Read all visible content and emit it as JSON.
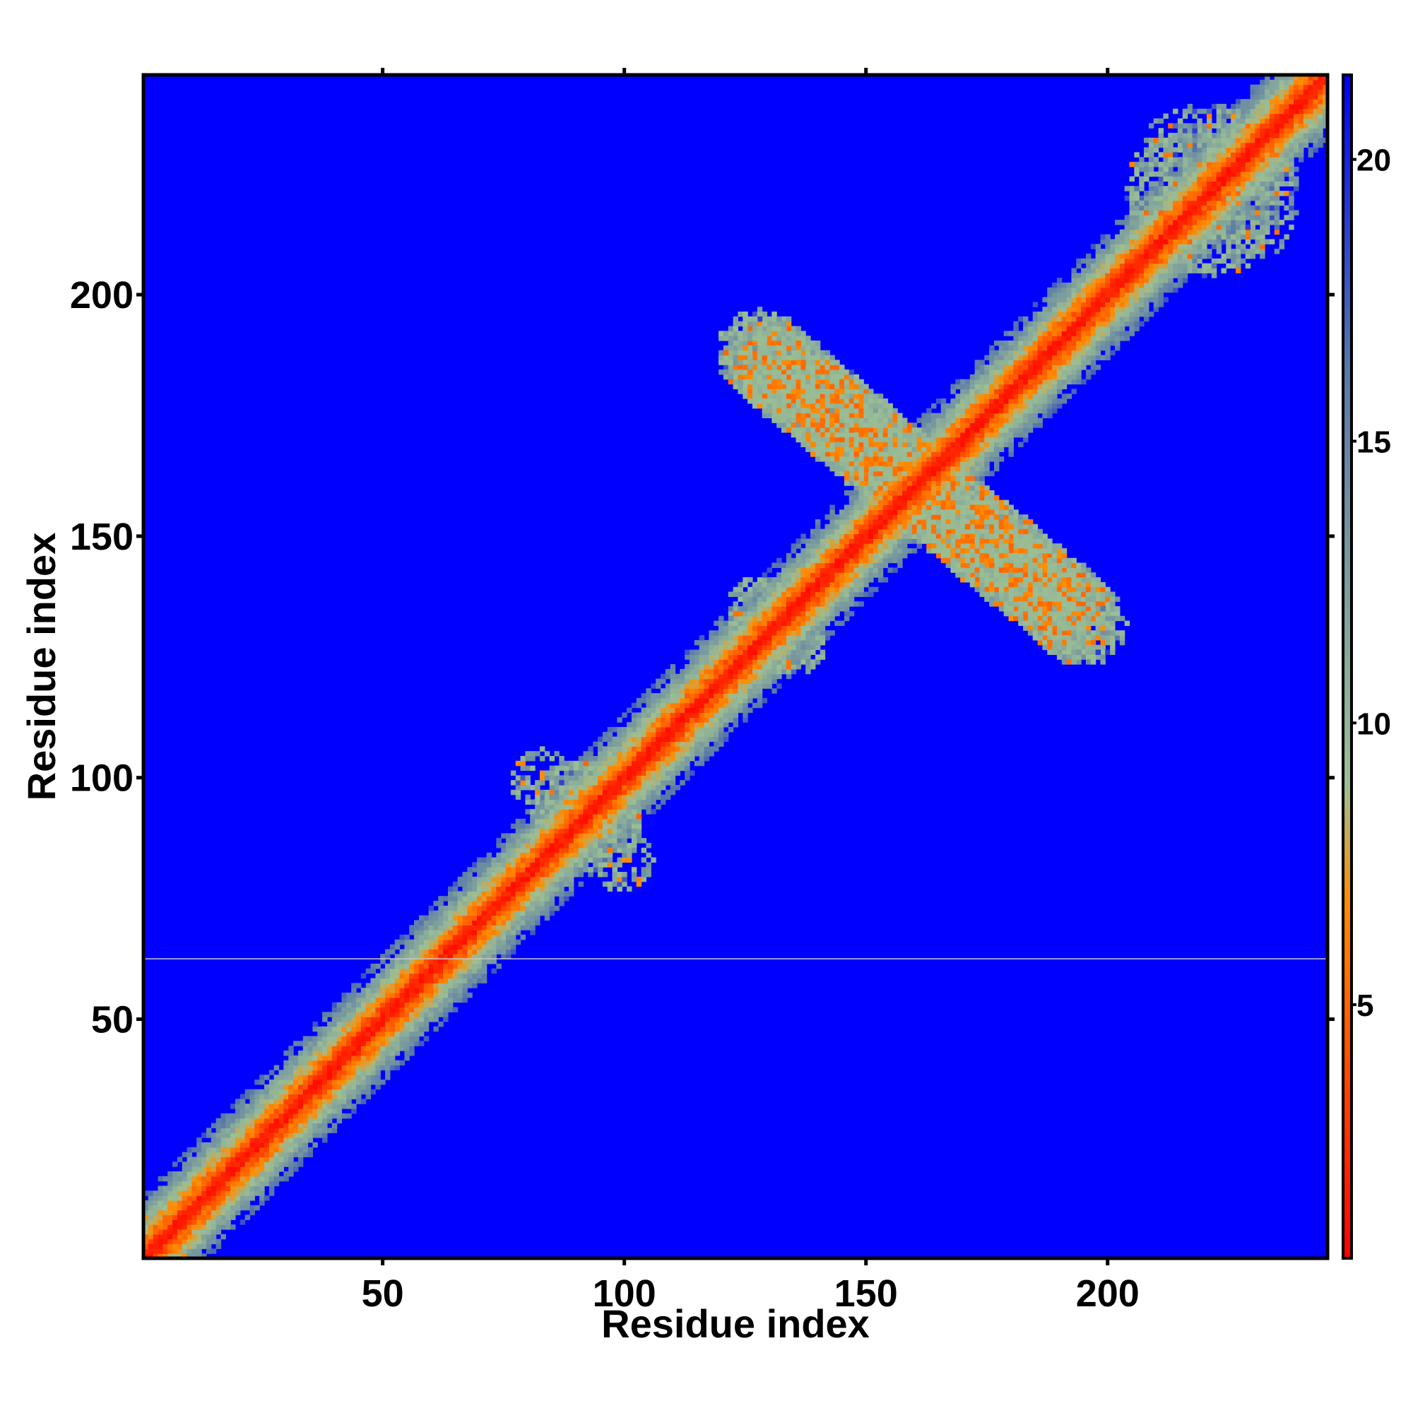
{
  "chart_data": {
    "type": "heatmap",
    "title": "",
    "xlabel": "Residue index",
    "ylabel": "Residue index",
    "xlim": [
      1,
      245
    ],
    "ylim": [
      1,
      245
    ],
    "x_ticks": [
      50,
      100,
      150,
      200
    ],
    "y_ticks": [
      50,
      100,
      150,
      200
    ],
    "colorbar": {
      "range": [
        0.5,
        21.5
      ],
      "ticks": [
        5,
        10,
        15,
        20
      ],
      "colors": [
        "#ff0000",
        "#ff8c00",
        "#9cbf94",
        "#5a78a8",
        "#0000ff"
      ],
      "stops": [
        0,
        0.3,
        0.4,
        0.75,
        1
      ]
    },
    "background_color": "#0000ff",
    "features": {
      "main_diagonal": {
        "from": 1,
        "to": 245,
        "width": 13
      },
      "antidiagonal_arms": [
        {
          "x_start": 128,
          "y_start": 188,
          "x_end": 195,
          "y_end": 132,
          "width": 9,
          "density": 0.55
        }
      ],
      "contact_blobs": [
        {
          "x": 92,
          "y": 95,
          "rx": 12,
          "ry": 9,
          "density": 0.55
        },
        {
          "x": 100,
          "y": 83,
          "rx": 6,
          "ry": 7,
          "density": 0.5
        },
        {
          "x": 222,
          "y": 220,
          "rx": 18,
          "ry": 16,
          "density": 0.45
        },
        {
          "x": 6,
          "y": 7,
          "rx": 8,
          "ry": 7,
          "density": 0.5
        },
        {
          "x": 135,
          "y": 128,
          "rx": 7,
          "ry": 7,
          "density": 0.5
        }
      ],
      "row_line": {
        "y": 62.5,
        "color": "#c8c8c8"
      }
    }
  }
}
